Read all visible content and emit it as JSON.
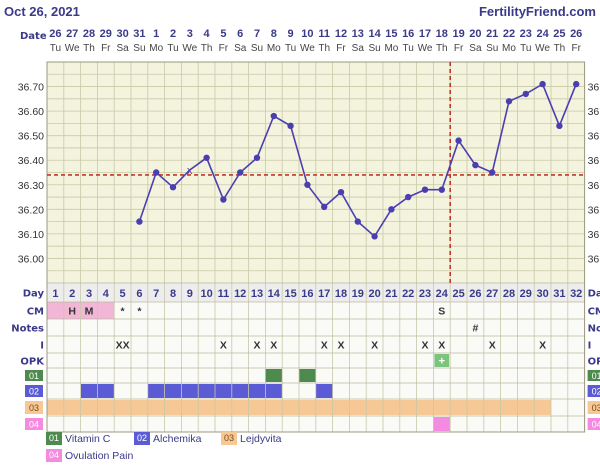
{
  "header": {
    "date": "Oct 26, 2021",
    "site": "FertilityFriend.com"
  },
  "labels": {
    "date": "Date",
    "day": "Day",
    "cm": "CM",
    "notes": "Notes",
    "intercourse": "I",
    "opk": "OPK"
  },
  "colors": {
    "plot_bg": "#f3f3de",
    "grid": "#c9c9a8",
    "line": "#4b3fb0",
    "coverline": "#c0392b",
    "text": "#3a3a8a",
    "cm_fill": "#f2b6d6",
    "opk_fill": "#7cc47c",
    "s01": "#4e8a4e",
    "s02": "#5b5bd6",
    "s03": "#f6c896",
    "s04": "#f58be0"
  },
  "chart_data": {
    "type": "line",
    "title": "",
    "x": [
      "26",
      "27",
      "28",
      "29",
      "30",
      "31",
      "1",
      "2",
      "3",
      "4",
      "5",
      "6",
      "7",
      "8",
      "9",
      "10",
      "11",
      "12",
      "13",
      "14",
      "15",
      "16",
      "17",
      "18",
      "19",
      "20",
      "21",
      "22",
      "23",
      "24",
      "25",
      "26"
    ],
    "weekdays": [
      "Tu",
      "We",
      "Th",
      "Fr",
      "Sa",
      "Su",
      "Mo",
      "Tu",
      "We",
      "Th",
      "Fr",
      "Sa",
      "Su",
      "Mo",
      "Tu",
      "We",
      "Th",
      "Fr",
      "Sa",
      "Su",
      "Mo",
      "Tu",
      "We",
      "Th",
      "Fr",
      "Sa",
      "Su",
      "Mo",
      "Tu",
      "We",
      "Th",
      "Fr"
    ],
    "cycle_days": [
      "1",
      "2",
      "3",
      "4",
      "5",
      "6",
      "7",
      "8",
      "9",
      "10",
      "11",
      "12",
      "13",
      "14",
      "15",
      "16",
      "17",
      "18",
      "19",
      "20",
      "21",
      "22",
      "23",
      "24",
      "25",
      "26",
      "27",
      "28",
      "29",
      "30",
      "31",
      "32"
    ],
    "y_ticks": [
      "36.00",
      "36.10",
      "36.20",
      "36.30",
      "36.40",
      "36.50",
      "36.60",
      "36.70"
    ],
    "ylim": [
      35.9,
      36.8
    ],
    "series": [
      {
        "values": [
          null,
          null,
          null,
          null,
          null,
          36.15,
          36.35,
          36.29,
          36.36,
          36.41,
          36.24,
          36.35,
          36.41,
          36.58,
          36.54,
          36.3,
          36.21,
          36.27,
          36.15,
          36.09,
          36.2,
          36.25,
          36.28,
          36.28,
          36.48,
          36.38,
          36.35,
          36.64,
          36.67,
          36.71,
          36.54,
          36.71
        ],
        "open_points": [
          8
        ]
      }
    ],
    "coverline": 36.34,
    "ovulation_day": 24
  },
  "rows": {
    "cm": [
      "",
      "H",
      "M",
      "",
      "*",
      "*",
      "",
      "",
      "",
      "",
      "",
      "",
      "",
      "",
      "",
      "",
      "",
      "",
      "",
      "",
      "",
      "",
      "",
      "S",
      "",
      "",
      "",
      "",
      "",
      "",
      "",
      ""
    ],
    "cm_fill": [
      1,
      1,
      1,
      1,
      0,
      0,
      0,
      0,
      0,
      0,
      0,
      0,
      0,
      0,
      0,
      0,
      0,
      0,
      0,
      0,
      0,
      0,
      0,
      0,
      0,
      0,
      0,
      0,
      0,
      0,
      0,
      0
    ],
    "notes": [
      "",
      "",
      "",
      "",
      "",
      "",
      "",
      "",
      "",
      "",
      "",
      "",
      "",
      "",
      "",
      "",
      "",
      "",
      "",
      "",
      "",
      "",
      "",
      "",
      "",
      "#",
      "",
      "",
      "",
      "",
      "",
      ""
    ],
    "intercourse": [
      "",
      "",
      "",
      "",
      "XX",
      "",
      "",
      "",
      "",
      "",
      "X",
      "",
      "X",
      "X",
      "",
      "",
      "X",
      "X",
      "",
      "X",
      "",
      "",
      "X",
      "X",
      "",
      "",
      "X",
      "",
      "",
      "X",
      "",
      ""
    ],
    "opk": [
      "",
      "",
      "",
      "",
      "",
      "",
      "",
      "",
      "",
      "",
      "",
      "",
      "",
      "",
      "",
      "",
      "",
      "",
      "",
      "",
      "",
      "",
      "",
      "+",
      "",
      "",
      "",
      "",
      "",
      "",
      "",
      ""
    ],
    "opk_fill": [
      0,
      0,
      0,
      0,
      0,
      0,
      0,
      0,
      0,
      0,
      0,
      0,
      0,
      0,
      0,
      0,
      0,
      0,
      0,
      0,
      0,
      0,
      0,
      1,
      0,
      0,
      0,
      0,
      0,
      0,
      0,
      0
    ]
  },
  "supplements": [
    {
      "code": "01",
      "name": "Vitamin C",
      "color": "#4e8a4e",
      "days": [
        14,
        16
      ]
    },
    {
      "code": "02",
      "name": "Alchemika",
      "color": "#5b5bd6",
      "days": [
        3,
        4,
        7,
        8,
        9,
        10,
        11,
        12,
        13,
        14,
        17
      ]
    },
    {
      "code": "03",
      "name": "Lejdyvita",
      "color": "#f6c896",
      "days": [
        1,
        2,
        3,
        4,
        5,
        6,
        7,
        8,
        9,
        10,
        11,
        12,
        13,
        14,
        15,
        16,
        17,
        18,
        19,
        20,
        21,
        22,
        23,
        24,
        25,
        26,
        27,
        28,
        29,
        30
      ]
    },
    {
      "code": "04",
      "name": "Ovulation Pain",
      "color": "#f58be0",
      "days": [
        24
      ]
    }
  ]
}
